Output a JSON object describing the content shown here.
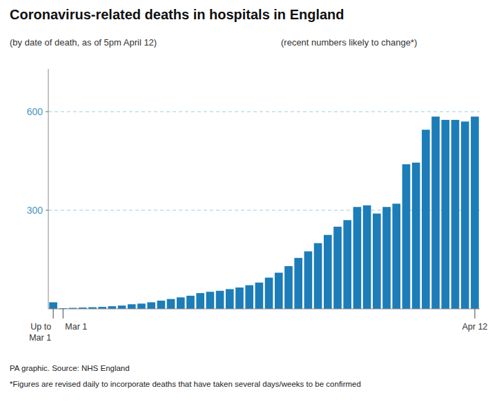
{
  "chart_data": {
    "type": "bar",
    "title": "Coronavirus-related deaths in hospitals in England",
    "subtitles": [
      "(by date of death, as of 5pm April 12)",
      "(recent numbers likely to change*)"
    ],
    "footnotes": [
      "PA graphic. Source: NHS England",
      "*Figures are revised daily to incorporate deaths that have taken several days/weeks to be confirmed"
    ],
    "categories": [
      "Up to\nMar 1",
      "Mar 1",
      null,
      null,
      null,
      null,
      null,
      null,
      null,
      null,
      null,
      null,
      null,
      null,
      null,
      null,
      null,
      null,
      null,
      null,
      null,
      null,
      null,
      null,
      null,
      null,
      null,
      null,
      null,
      null,
      null,
      null,
      null,
      null,
      null,
      null,
      null,
      null,
      null,
      null,
      null,
      null,
      null,
      "Apr 12"
    ],
    "values": [
      20,
      2,
      3,
      4,
      5,
      6,
      8,
      10,
      14,
      16,
      20,
      25,
      30,
      35,
      40,
      48,
      52,
      55,
      60,
      65,
      72,
      80,
      95,
      110,
      130,
      155,
      175,
      200,
      225,
      250,
      270,
      310,
      315,
      290,
      310,
      320,
      440,
      445,
      545,
      585,
      575,
      575,
      570,
      585
    ],
    "color": "#1c7db8",
    "ylim": [
      0,
      730
    ],
    "yticks": [
      300,
      600
    ],
    "grid": true
  }
}
